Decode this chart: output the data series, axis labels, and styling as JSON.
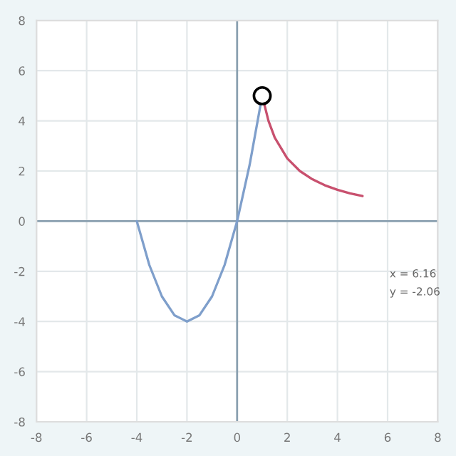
{
  "chart_data": {
    "type": "line",
    "series": [
      {
        "color": "#7f9fcb",
        "x": [
          -4,
          -3.5,
          -3,
          -2.5,
          -2,
          -1.5,
          -1,
          -0.5,
          0,
          0.5,
          1
        ],
        "values": [
          0,
          -1.75,
          -3,
          -3.75,
          -4,
          -3.75,
          -3,
          -1.75,
          0,
          2.25,
          5
        ]
      },
      {
        "color": "#c8506e",
        "x": [
          1,
          1.25,
          1.5,
          2,
          2.5,
          3,
          3.5,
          4,
          4.5,
          5
        ],
        "values": [
          5,
          4,
          3.33,
          2.5,
          2,
          1.67,
          1.43,
          1.25,
          1.11,
          1
        ]
      },
      {
        "type": "scatter",
        "color": "#000000",
        "marker": "circle",
        "x": [
          1
        ],
        "values": [
          5
        ]
      }
    ],
    "xlim": [
      -8,
      8
    ],
    "ylim": [
      -8,
      8
    ],
    "xticks": [
      -8,
      -6,
      -4,
      -2,
      0,
      2,
      4,
      6,
      8
    ],
    "yticks": [
      -8,
      -6,
      -4,
      -2,
      0,
      2,
      4,
      6,
      8
    ],
    "grid": true,
    "annotations": [
      "x = 6.16",
      "y = -2.06"
    ]
  }
}
